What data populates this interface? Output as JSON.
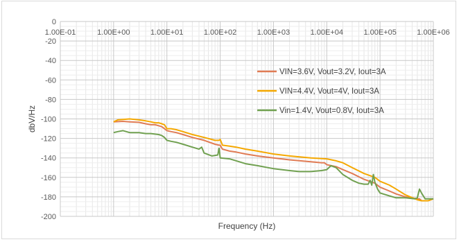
{
  "chart_data": {
    "type": "line",
    "title": "",
    "xlabel": "Frequency (Hz)",
    "ylabel": "dbV/Hz",
    "x_scale": "log",
    "xlim": [
      0.1,
      1000000
    ],
    "ylim": [
      -200,
      0
    ],
    "x_ticks": [
      0.1,
      1,
      10,
      100,
      1000,
      10000,
      100000,
      1000000
    ],
    "x_tick_labels": [
      "1.00E-01",
      "1.00E+00",
      "1.00E+01",
      "1.00E+02",
      "1.00E+03",
      "1.00E+04",
      "1.00E+05",
      "1.00E+06"
    ],
    "y_ticks": [
      0,
      -20,
      -40,
      -60,
      -80,
      -100,
      -120,
      -140,
      -160,
      -180,
      -200
    ],
    "y_tick_labels": [
      "0",
      "-20",
      "-40",
      "-60",
      "-80",
      "-100",
      "-120",
      "-140",
      "-160",
      "-180",
      "-200"
    ],
    "grid": true,
    "legend_position": "right",
    "series": [
      {
        "name": "VIN=3.6V, Vout=3.2V, Iout=3A",
        "color": "#e07b54",
        "points": [
          [
            1,
            -103
          ],
          [
            1.5,
            -102.5
          ],
          [
            2,
            -103
          ],
          [
            3,
            -103.5
          ],
          [
            4,
            -105
          ],
          [
            5,
            -106
          ],
          [
            6,
            -106
          ],
          [
            7,
            -107
          ],
          [
            8,
            -108
          ],
          [
            9,
            -110
          ],
          [
            10,
            -112
          ],
          [
            12,
            -113
          ],
          [
            15,
            -114
          ],
          [
            20,
            -116
          ],
          [
            30,
            -119
          ],
          [
            50,
            -122
          ],
          [
            80,
            -126
          ],
          [
            95,
            -127
          ],
          [
            100,
            -127
          ],
          [
            110,
            -131
          ],
          [
            150,
            -133
          ],
          [
            200,
            -134
          ],
          [
            300,
            -136
          ],
          [
            500,
            -138
          ],
          [
            1000,
            -140
          ],
          [
            2000,
            -142
          ],
          [
            5000,
            -144
          ],
          [
            8000,
            -145
          ],
          [
            9000,
            -145
          ],
          [
            10000,
            -147
          ],
          [
            15000,
            -149
          ],
          [
            20000,
            -152
          ],
          [
            30000,
            -156
          ],
          [
            50000,
            -162
          ],
          [
            80000,
            -166
          ],
          [
            100000,
            -170
          ],
          [
            150000,
            -174
          ],
          [
            200000,
            -177
          ],
          [
            300000,
            -180
          ],
          [
            500000,
            -182
          ],
          [
            550000,
            -182
          ],
          [
            600000,
            -184
          ],
          [
            700000,
            -184
          ],
          [
            800000,
            -184
          ],
          [
            1000000,
            -182
          ]
        ]
      },
      {
        "name": "VIN=4.4V, Vout=4V, Iout=3A",
        "color": "#f5a800",
        "points": [
          [
            1,
            -103
          ],
          [
            1.2,
            -101
          ],
          [
            1.5,
            -100.5
          ],
          [
            2,
            -100
          ],
          [
            3,
            -101
          ],
          [
            4,
            -102
          ],
          [
            5,
            -103
          ],
          [
            6,
            -104
          ],
          [
            7,
            -104
          ],
          [
            8,
            -105
          ],
          [
            9,
            -106
          ],
          [
            10,
            -110
          ],
          [
            12,
            -110
          ],
          [
            15,
            -111
          ],
          [
            20,
            -113
          ],
          [
            30,
            -116
          ],
          [
            50,
            -119
          ],
          [
            80,
            -122
          ],
          [
            95,
            -122
          ],
          [
            100,
            -121
          ],
          [
            110,
            -127
          ],
          [
            150,
            -128
          ],
          [
            200,
            -129
          ],
          [
            300,
            -131
          ],
          [
            500,
            -133
          ],
          [
            1000,
            -136
          ],
          [
            2000,
            -138
          ],
          [
            5000,
            -140
          ],
          [
            10000,
            -141
          ],
          [
            15000,
            -143
          ],
          [
            20000,
            -145
          ],
          [
            30000,
            -150
          ],
          [
            50000,
            -156
          ],
          [
            80000,
            -160
          ],
          [
            100000,
            -164
          ],
          [
            150000,
            -168
          ],
          [
            200000,
            -172
          ],
          [
            300000,
            -178
          ],
          [
            500000,
            -183
          ],
          [
            600000,
            -184
          ],
          [
            700000,
            -184
          ],
          [
            800000,
            -184
          ],
          [
            1000000,
            -182
          ]
        ]
      },
      {
        "name": "Vin=1.4V, Vout=0.8V, Iout=3A",
        "color": "#70a050",
        "points": [
          [
            1,
            -114
          ],
          [
            1.2,
            -113
          ],
          [
            1.5,
            -112
          ],
          [
            2,
            -114
          ],
          [
            3,
            -114
          ],
          [
            4,
            -115
          ],
          [
            5,
            -115
          ],
          [
            7,
            -116
          ],
          [
            8,
            -117
          ],
          [
            9,
            -119
          ],
          [
            10,
            -122
          ],
          [
            12,
            -123
          ],
          [
            15,
            -124
          ],
          [
            20,
            -126
          ],
          [
            30,
            -129
          ],
          [
            40,
            -131
          ],
          [
            45,
            -129
          ],
          [
            50,
            -135
          ],
          [
            70,
            -138
          ],
          [
            90,
            -137
          ],
          [
            95,
            -130
          ],
          [
            100,
            -140
          ],
          [
            150,
            -141
          ],
          [
            200,
            -143
          ],
          [
            300,
            -146
          ],
          [
            500,
            -148
          ],
          [
            1000,
            -151
          ],
          [
            2000,
            -153
          ],
          [
            3000,
            -154
          ],
          [
            5000,
            -154
          ],
          [
            8000,
            -153
          ],
          [
            10000,
            -152
          ],
          [
            12000,
            -148
          ],
          [
            15000,
            -150
          ],
          [
            20000,
            -157
          ],
          [
            30000,
            -163
          ],
          [
            40000,
            -166
          ],
          [
            50000,
            -167
          ],
          [
            60000,
            -167
          ],
          [
            65000,
            -163
          ],
          [
            70000,
            -168
          ],
          [
            75000,
            -157
          ],
          [
            80000,
            -165
          ],
          [
            90000,
            -172
          ],
          [
            100000,
            -176
          ],
          [
            150000,
            -179
          ],
          [
            200000,
            -181
          ],
          [
            300000,
            -181
          ],
          [
            450000,
            -182
          ],
          [
            500000,
            -181
          ],
          [
            550000,
            -172
          ],
          [
            600000,
            -176
          ],
          [
            700000,
            -182
          ],
          [
            800000,
            -182
          ],
          [
            1000000,
            -182
          ]
        ]
      }
    ]
  }
}
